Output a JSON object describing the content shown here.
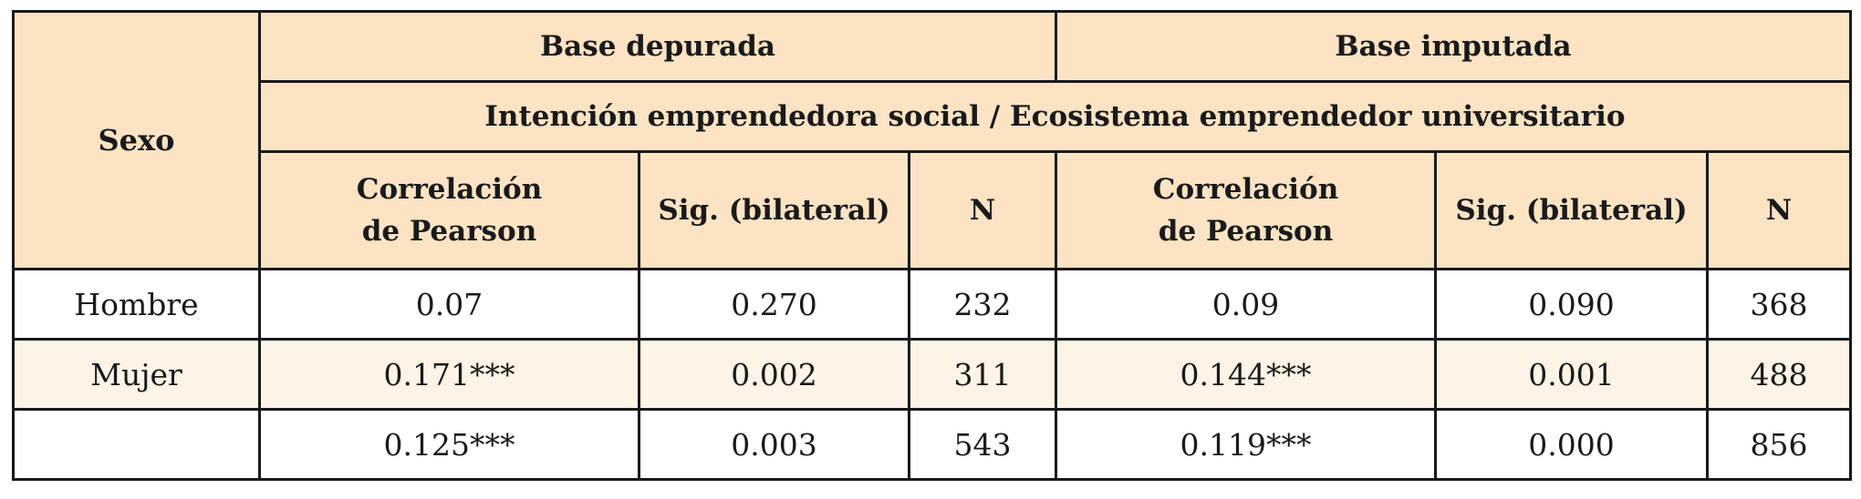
{
  "table": {
    "header": {
      "sexo": "Sexo",
      "group_left": "Base depurada",
      "group_right": "Base imputada",
      "subtitle": "Intención emprendedora social / Ecosistema emprendedor universitario",
      "columns_left": [
        {
          "line1": "Correlación",
          "line2": "de Pearson"
        },
        {
          "line1": "Sig. (bilateral)",
          "line2": ""
        },
        {
          "line1": "N",
          "line2": ""
        }
      ],
      "columns_right": [
        {
          "line1": "Correlación",
          "line2": "de Pearson"
        },
        {
          "line1": "Sig. (bilateral)",
          "line2": ""
        },
        {
          "line1": "N",
          "line2": ""
        }
      ]
    },
    "rows": [
      {
        "label": "Hombre",
        "values": [
          "0.07",
          "0.270",
          "232",
          "0.09",
          "0.090",
          "368"
        ]
      },
      {
        "label": "Mujer",
        "values": [
          "0.171***",
          "0.002",
          "311",
          "0.144***",
          "0.001",
          "488"
        ]
      },
      {
        "label": "",
        "values": [
          "0.125***",
          "0.003",
          "543",
          "0.119***",
          "0.000",
          "856"
        ]
      }
    ]
  }
}
